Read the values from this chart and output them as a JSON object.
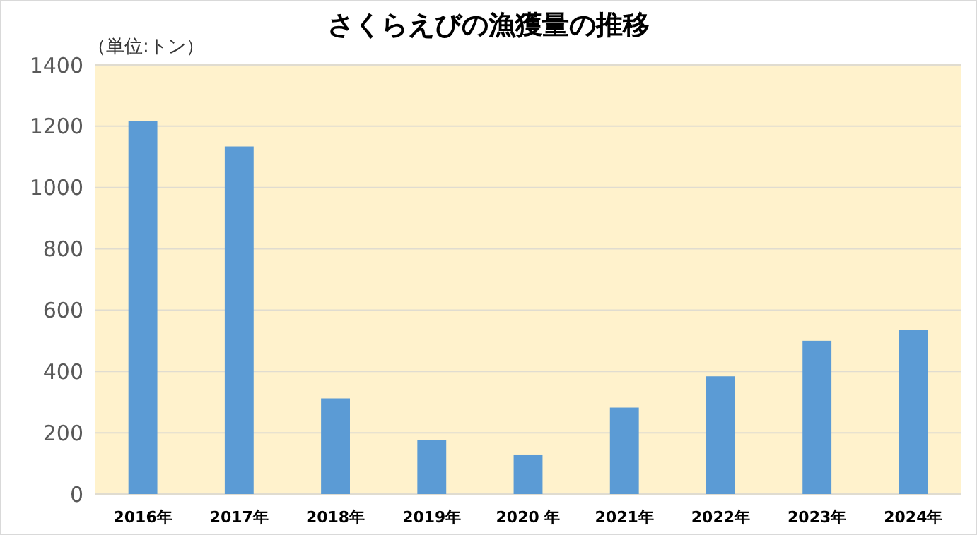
{
  "chart_data": {
    "type": "bar",
    "title": "さくらえびの漁獲量の推移",
    "ylabel": "（単位:トン）",
    "categories": [
      "2016年",
      "2017年",
      "2018年",
      "2019年",
      "2020 年",
      "2021年",
      "2022年",
      "2023年",
      "2024年"
    ],
    "values": [
      1216,
      1134,
      312,
      177,
      129,
      282,
      384,
      500,
      536
    ],
    "color": "#5b9bd5",
    "ylim": [
      0,
      1400
    ],
    "yticks": [
      0,
      200,
      400,
      600,
      800,
      1000,
      1200,
      1400
    ],
    "grid": "y"
  }
}
